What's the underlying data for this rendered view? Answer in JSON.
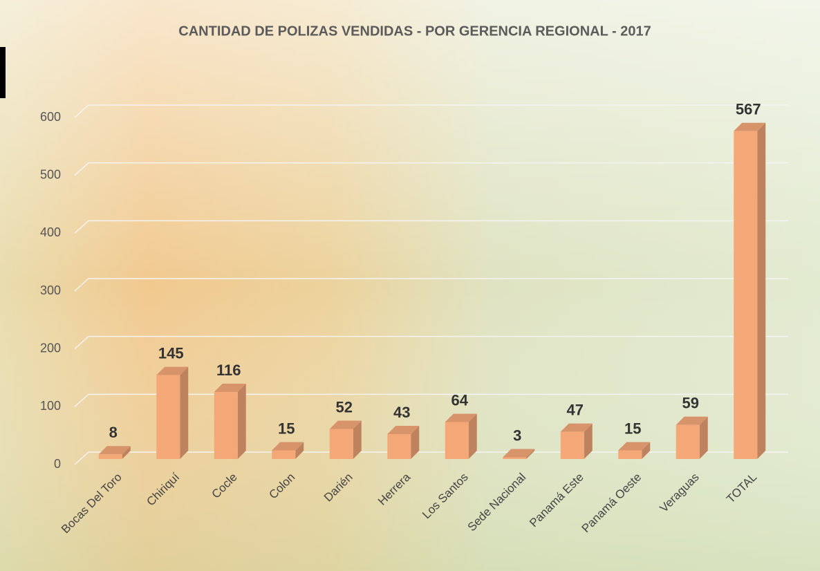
{
  "chart_data": {
    "type": "bar3d",
    "title": "CANTIDAD DE POLIZAS VENDIDAS - POR GERENCIA REGIONAL  - 2017",
    "categories": [
      "Bocas Del Toro",
      "Chiriquí",
      "Cocle",
      "Colon",
      "Darién",
      "Herrera",
      "Los Santos",
      "Sede Nacional",
      "Panamá Este",
      "Panamá Oeste",
      "Veraguas",
      "TOTAL"
    ],
    "values": [
      8,
      145,
      116,
      15,
      52,
      43,
      64,
      3,
      47,
      15,
      59,
      567
    ],
    "color": "#f4a878",
    "ylim": [
      0,
      600
    ],
    "yticks": [
      0,
      100,
      200,
      300,
      400,
      500,
      600
    ],
    "grid": true
  }
}
